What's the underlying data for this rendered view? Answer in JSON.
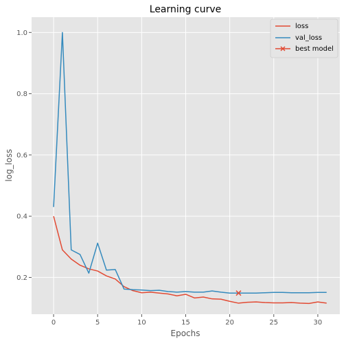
{
  "chart_data": {
    "type": "line",
    "title": "Learning curve",
    "xlabel": "Epochs",
    "ylabel": "log_loss",
    "xlim": [
      -2.5,
      32.5
    ],
    "ylim": [
      0.08,
      1.05
    ],
    "xticks": [
      0,
      5,
      10,
      15,
      20,
      25,
      30
    ],
    "yticks": [
      0.2,
      0.4,
      0.6,
      0.8,
      1.0
    ],
    "ytick_labels": [
      "0.2",
      "0.4",
      "0.6",
      "0.8",
      "1.0"
    ],
    "grid": true,
    "legend_position": "top-right",
    "series": [
      {
        "name": "loss",
        "color": "#e24a33",
        "x": [
          0,
          1,
          2,
          3,
          4,
          5,
          6,
          7,
          8,
          9,
          10,
          11,
          12,
          13,
          14,
          15,
          16,
          17,
          18,
          19,
          20,
          21,
          22,
          23,
          24,
          25,
          26,
          27,
          28,
          29,
          30,
          31
        ],
        "values": [
          0.4,
          0.29,
          0.26,
          0.24,
          0.228,
          0.221,
          0.205,
          0.195,
          0.17,
          0.157,
          0.15,
          0.152,
          0.149,
          0.146,
          0.14,
          0.145,
          0.133,
          0.136,
          0.13,
          0.129,
          0.122,
          0.116,
          0.119,
          0.12,
          0.118,
          0.117,
          0.117,
          0.118,
          0.116,
          0.115,
          0.12,
          0.116
        ]
      },
      {
        "name": "val_loss",
        "color": "#348abd",
        "x": [
          0,
          1,
          2,
          3,
          4,
          5,
          6,
          7,
          8,
          9,
          10,
          11,
          12,
          13,
          14,
          15,
          16,
          17,
          18,
          19,
          20,
          21,
          22,
          23,
          24,
          25,
          26,
          27,
          28,
          29,
          30,
          31
        ],
        "values": [
          0.43,
          1.0,
          0.29,
          0.275,
          0.214,
          0.312,
          0.224,
          0.226,
          0.162,
          0.16,
          0.159,
          0.157,
          0.158,
          0.154,
          0.152,
          0.154,
          0.152,
          0.152,
          0.156,
          0.152,
          0.149,
          0.149,
          0.149,
          0.149,
          0.15,
          0.151,
          0.151,
          0.15,
          0.15,
          0.15,
          0.151,
          0.151
        ]
      },
      {
        "name": "best model",
        "color": "#e24a33",
        "marker": "x",
        "x": [
          21
        ],
        "values": [
          0.149
        ]
      }
    ]
  }
}
